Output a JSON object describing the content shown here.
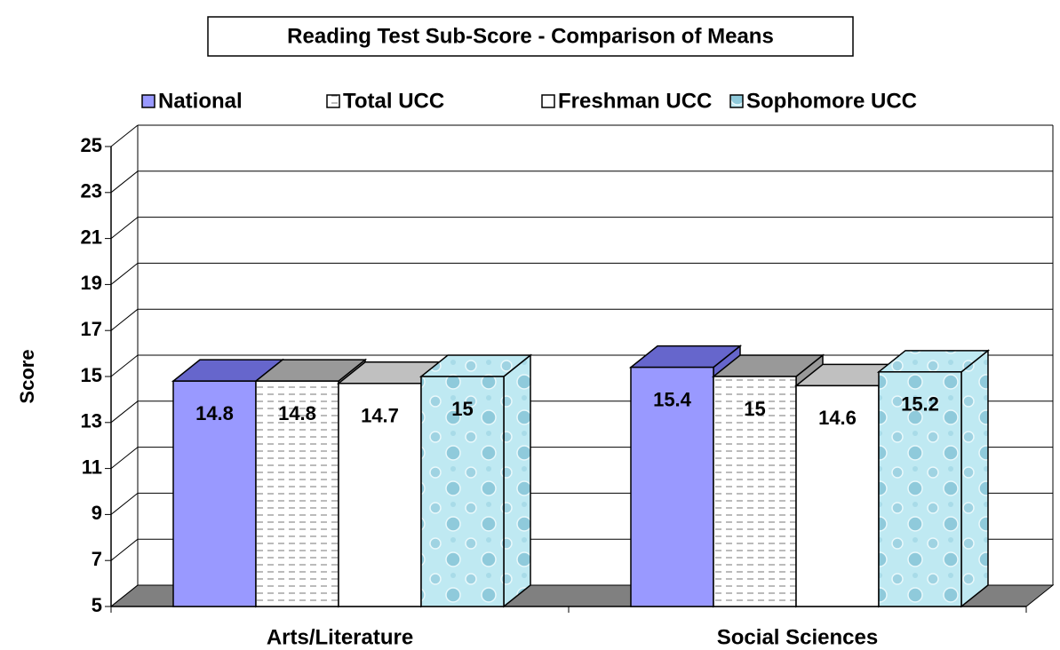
{
  "chart_data": {
    "type": "bar3d",
    "title": "Reading Test Sub-Score - Comparison of Means",
    "ylabel": "Score",
    "categories": [
      "Arts/Literature",
      "Social Sciences"
    ],
    "series": [
      {
        "name": "National",
        "color": "#9999ff",
        "values": [
          14.8,
          15.4
        ]
      },
      {
        "name": "Total UCC",
        "color": "#ffffff",
        "values": [
          14.8,
          15
        ]
      },
      {
        "name": "Freshman UCC",
        "color": "#ffffff",
        "values": [
          14.7,
          14.6
        ]
      },
      {
        "name": "Sophomore UCC",
        "color": "#bfe9f2",
        "values": [
          15,
          15.2
        ]
      }
    ],
    "ylim": [
      5,
      25
    ],
    "yticks": [
      5,
      7,
      9,
      11,
      13,
      15,
      17,
      19,
      21,
      23,
      25
    ],
    "grid": true
  }
}
